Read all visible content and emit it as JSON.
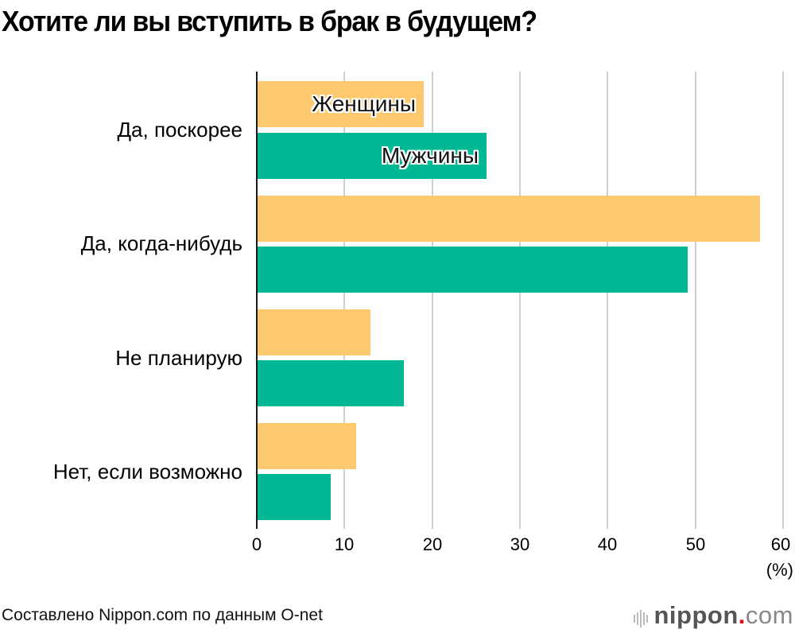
{
  "title": "Хотите ли вы вступить в брак в будущем?",
  "source": "Составлено Nippon.com по данным O-net",
  "logo": {
    "main": "nippon",
    "dot": ".",
    "suffix": "com"
  },
  "colors": {
    "women": "#fcc96f",
    "men": "#00b894",
    "grid": "#d0d0d0",
    "axis": "#1a1a1a"
  },
  "legend": {
    "women": "Женщины",
    "men": "Мужчины"
  },
  "axis": {
    "ticks": [
      "0",
      "10",
      "20",
      "30",
      "40",
      "50",
      "60"
    ],
    "unit": "(%)"
  },
  "categories": [
    "Да, поскорее",
    "Да, когда-нибудь",
    "Не планирую",
    "Нет, если возможно"
  ],
  "chart_data": {
    "type": "bar",
    "orientation": "horizontal",
    "title": "Хотите ли вы вступить в брак в будущем?",
    "categories": [
      "Да, поскорее",
      "Да, когда-нибудь",
      "Не планирую",
      "Нет, если возможно"
    ],
    "series": [
      {
        "name": "Женщины",
        "color": "#fcc96f",
        "values": [
          18.9,
          57.3,
          12.9,
          11.2
        ]
      },
      {
        "name": "Мужчины",
        "color": "#00b894",
        "values": [
          26.1,
          49.0,
          16.7,
          8.3
        ]
      }
    ],
    "xlabel": "(%)",
    "ylabel": "",
    "xlim": [
      0,
      60
    ],
    "xticks": [
      0,
      10,
      20,
      30,
      40,
      50,
      60
    ],
    "grid": "vertical",
    "legend_position": "inside first bars",
    "source": "Составлено Nippon.com по данным O-net"
  }
}
